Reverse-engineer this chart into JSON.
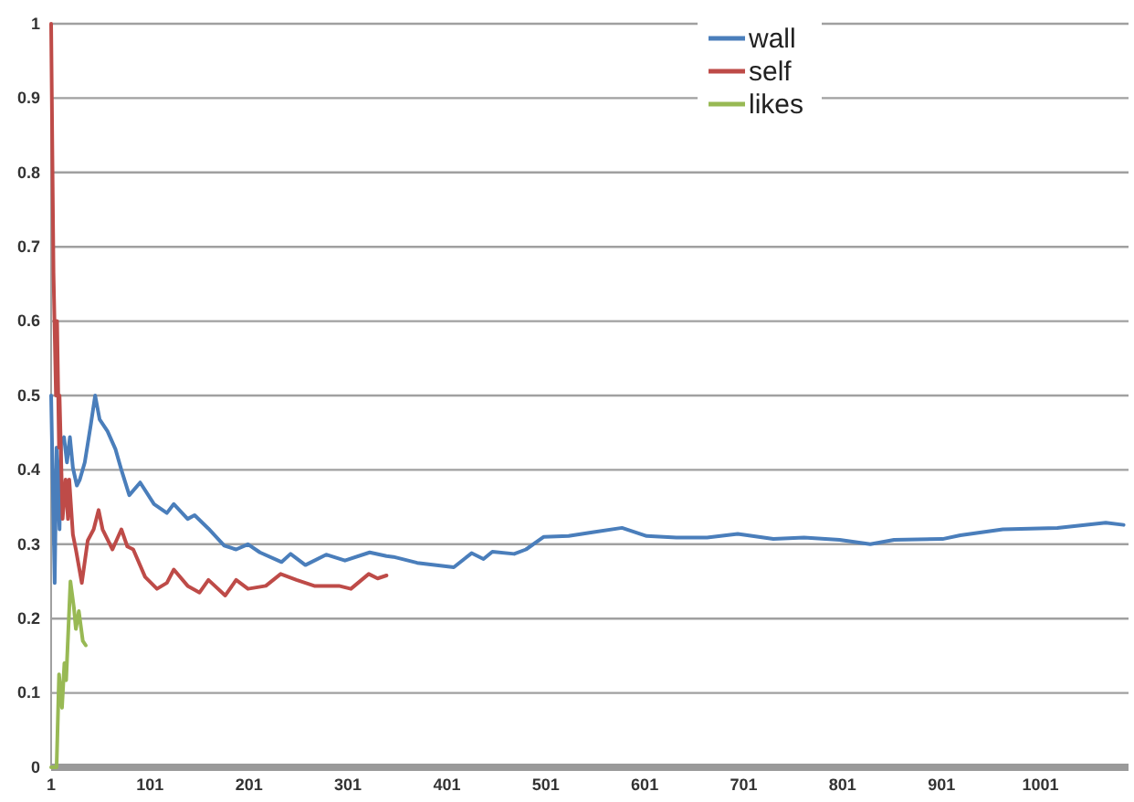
{
  "chart_data": {
    "type": "line",
    "xlim": [
      1,
      1090
    ],
    "xticks": [
      1,
      101,
      201,
      301,
      401,
      501,
      601,
      701,
      801,
      901,
      1001
    ],
    "ylim": [
      0,
      1
    ],
    "yticks": [
      0,
      0.1,
      0.2,
      0.3,
      0.4,
      0.5,
      0.6,
      0.7,
      0.8,
      0.9,
      1
    ],
    "grid": "y",
    "legend": "top right",
    "marker": "none",
    "line_style": "solid",
    "series": [
      {
        "name": "wall",
        "color": "#4a7ebb",
        "x": [
          1,
          4.6,
          6.5,
          9.5,
          11,
          14,
          17,
          20,
          23,
          27,
          30,
          35,
          41,
          45.5,
          50,
          58,
          66,
          72,
          80,
          91,
          105,
          118,
          125,
          139,
          146,
          160,
          176,
          188,
          200,
          212,
          234,
          243,
          258,
          279,
          298,
          323,
          340,
          347,
          371,
          408,
          426,
          438,
          447,
          469,
          481,
          499,
          524,
          548,
          578,
          603,
          633,
          664,
          695,
          731,
          762,
          798,
          829,
          853,
          902,
          920,
          963,
          1018,
          1067,
          1085
        ],
        "values": [
          0.5,
          0.248,
          0.43,
          0.32,
          0.436,
          0.444,
          0.41,
          0.444,
          0.403,
          0.379,
          0.387,
          0.41,
          0.46,
          0.5,
          0.468,
          0.452,
          0.428,
          0.4,
          0.366,
          0.383,
          0.354,
          0.342,
          0.354,
          0.334,
          0.339,
          0.321,
          0.298,
          0.293,
          0.3,
          0.289,
          0.276,
          0.287,
          0.272,
          0.286,
          0.278,
          0.289,
          0.284,
          0.283,
          0.275,
          0.269,
          0.288,
          0.28,
          0.29,
          0.287,
          0.293,
          0.31,
          0.311,
          0.316,
          0.322,
          0.311,
          0.309,
          0.309,
          0.314,
          0.307,
          0.309,
          0.306,
          0.3,
          0.306,
          0.307,
          0.312,
          0.32,
          0.322,
          0.329,
          0.326
        ]
      },
      {
        "name": "self",
        "color": "#be4b48",
        "x": [
          1,
          3.4,
          5.9,
          7,
          9,
          9.5,
          12.6,
          15.6,
          18,
          19.3,
          23,
          26,
          32,
          38,
          44,
          49,
          53,
          63,
          72,
          78,
          84,
          96,
          108,
          118,
          125,
          139,
          151,
          160,
          177,
          188,
          200,
          218,
          233,
          249,
          267,
          292,
          304,
          322,
          331,
          340
        ],
        "values": [
          1,
          0.665,
          0.5,
          0.6,
          0.43,
          0.5,
          0.334,
          0.387,
          0.334,
          0.387,
          0.313,
          0.293,
          0.248,
          0.305,
          0.32,
          0.346,
          0.32,
          0.293,
          0.32,
          0.297,
          0.293,
          0.256,
          0.24,
          0.248,
          0.266,
          0.244,
          0.235,
          0.252,
          0.231,
          0.252,
          0.24,
          0.244,
          0.26,
          0.252,
          0.244,
          0.244,
          0.24,
          0.26,
          0.254,
          0.258
        ]
      },
      {
        "name": "likes",
        "color": "#98b954",
        "x": [
          1,
          6.5,
          9,
          12,
          14.4,
          16.2,
          20.5,
          24,
          26,
          29,
          33,
          36
        ],
        "values": [
          0,
          0,
          0.125,
          0.08,
          0.14,
          0.117,
          0.25,
          0.215,
          0.186,
          0.21,
          0.17,
          0.164
        ]
      }
    ]
  }
}
